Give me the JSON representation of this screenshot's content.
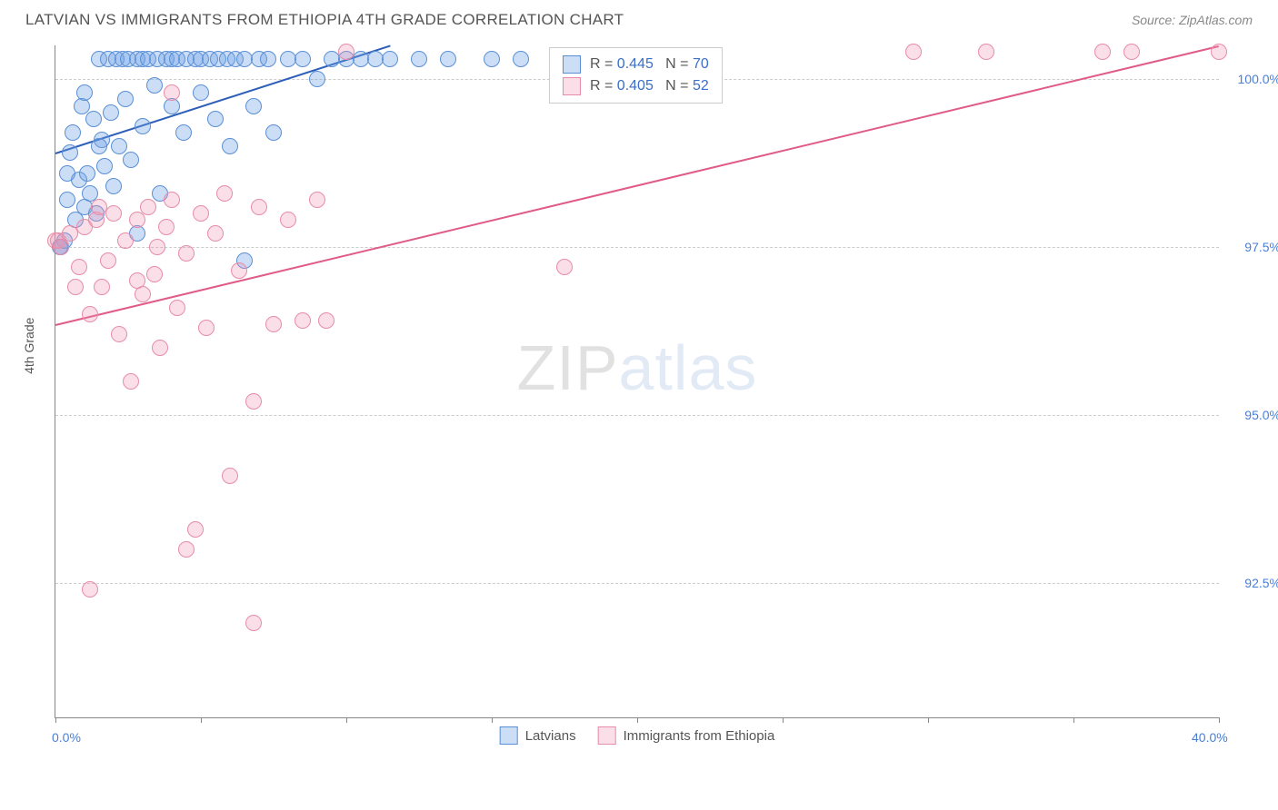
{
  "header": {
    "title": "LATVIAN VS IMMIGRANTS FROM ETHIOPIA 4TH GRADE CORRELATION CHART",
    "source_prefix": "Source: ",
    "source_name": "ZipAtlas.com"
  },
  "chart": {
    "type": "scatter",
    "y_axis_title": "4th Grade",
    "background_color": "#ffffff",
    "grid_color": "#cccccc",
    "axis_color": "#888888",
    "text_color": "#555555",
    "value_color": "#4a7fd6",
    "xlim": [
      0,
      40
    ],
    "ylim": [
      90.5,
      100.5
    ],
    "x_ticks": [
      0,
      5,
      10,
      15,
      20,
      25,
      30,
      35,
      40
    ],
    "y_gridlines": [
      92.5,
      95.0,
      97.5,
      100.0
    ],
    "x_labels": [
      {
        "v": 0,
        "t": "0.0%"
      },
      {
        "v": 40,
        "t": "40.0%"
      }
    ],
    "y_labels": [
      {
        "v": 92.5,
        "t": "92.5%"
      },
      {
        "v": 95.0,
        "t": "95.0%"
      },
      {
        "v": 97.5,
        "t": "97.5%"
      },
      {
        "v": 100.0,
        "t": "100.0%"
      }
    ],
    "marker_radius": 9,
    "marker_border_width": 1.5,
    "line_width": 2,
    "watermark": {
      "part1": "ZIP",
      "part2": "atlas"
    }
  },
  "series": [
    {
      "name": "Latvians",
      "fill_color": "rgba(110,160,230,0.35)",
      "stroke_color": "#5a8fd6",
      "line_color": "#2d5fb8",
      "R": "0.445",
      "N": "70",
      "regression": {
        "x1": 0,
        "y1": 98.9,
        "x2": 11.5,
        "y2": 100.5
      },
      "points": [
        [
          0.3,
          97.6
        ],
        [
          0.4,
          98.2
        ],
        [
          0.5,
          98.9
        ],
        [
          0.6,
          99.2
        ],
        [
          0.7,
          97.9
        ],
        [
          0.8,
          98.5
        ],
        [
          0.9,
          99.6
        ],
        [
          1.0,
          98.1
        ],
        [
          1.0,
          99.8
        ],
        [
          1.1,
          98.6
        ],
        [
          1.2,
          98.3
        ],
        [
          1.3,
          99.4
        ],
        [
          1.4,
          98.0
        ],
        [
          1.5,
          100.3
        ],
        [
          1.6,
          99.1
        ],
        [
          1.7,
          98.7
        ],
        [
          1.8,
          100.3
        ],
        [
          1.9,
          99.5
        ],
        [
          2.0,
          98.4
        ],
        [
          2.1,
          100.3
        ],
        [
          2.2,
          99.0
        ],
        [
          2.3,
          100.3
        ],
        [
          2.4,
          99.7
        ],
        [
          2.5,
          100.3
        ],
        [
          2.6,
          98.8
        ],
        [
          2.8,
          100.3
        ],
        [
          3.0,
          99.3
        ],
        [
          3.0,
          100.3
        ],
        [
          3.2,
          100.3
        ],
        [
          3.4,
          99.9
        ],
        [
          3.5,
          100.3
        ],
        [
          3.6,
          98.3
        ],
        [
          3.8,
          100.3
        ],
        [
          4.0,
          99.6
        ],
        [
          4.0,
          100.3
        ],
        [
          4.2,
          100.3
        ],
        [
          4.4,
          99.2
        ],
        [
          4.5,
          100.3
        ],
        [
          4.8,
          100.3
        ],
        [
          5.0,
          99.8
        ],
        [
          5.0,
          100.3
        ],
        [
          5.3,
          100.3
        ],
        [
          5.5,
          99.4
        ],
        [
          5.6,
          100.3
        ],
        [
          5.9,
          100.3
        ],
        [
          6.0,
          99.0
        ],
        [
          6.2,
          100.3
        ],
        [
          6.5,
          100.3
        ],
        [
          6.8,
          99.6
        ],
        [
          7.0,
          100.3
        ],
        [
          7.3,
          100.3
        ],
        [
          7.5,
          99.2
        ],
        [
          8.0,
          100.3
        ],
        [
          8.5,
          100.3
        ],
        [
          9.0,
          100.0
        ],
        [
          9.5,
          100.3
        ],
        [
          10.0,
          100.3
        ],
        [
          10.5,
          100.3
        ],
        [
          11.0,
          100.3
        ],
        [
          11.5,
          100.3
        ],
        [
          12.5,
          100.3
        ],
        [
          13.5,
          100.3
        ],
        [
          15.0,
          100.3
        ],
        [
          16.0,
          100.3
        ],
        [
          2.8,
          97.7
        ],
        [
          6.5,
          97.3
        ],
        [
          0.2,
          97.5
        ],
        [
          0.15,
          97.5
        ],
        [
          0.4,
          98.6
        ],
        [
          1.5,
          99.0
        ]
      ]
    },
    {
      "name": "Immigrants from Ethiopia",
      "fill_color": "rgba(240,150,180,0.30)",
      "stroke_color": "#e88ca8",
      "line_color": "#e05a8a",
      "R": "0.405",
      "N": "52",
      "regression": {
        "x1": 0,
        "y1": 96.35,
        "x2": 40,
        "y2": 100.5
      },
      "points": [
        [
          0.0,
          97.6
        ],
        [
          0.1,
          97.6
        ],
        [
          0.2,
          97.5
        ],
        [
          0.5,
          97.7
        ],
        [
          0.8,
          97.2
        ],
        [
          1.0,
          97.8
        ],
        [
          1.2,
          96.5
        ],
        [
          1.4,
          97.9
        ],
        [
          1.6,
          96.9
        ],
        [
          1.8,
          97.3
        ],
        [
          2.0,
          98.0
        ],
        [
          2.2,
          96.2
        ],
        [
          2.4,
          97.6
        ],
        [
          2.6,
          95.5
        ],
        [
          2.8,
          97.9
        ],
        [
          3.0,
          96.8
        ],
        [
          3.2,
          98.1
        ],
        [
          3.4,
          97.1
        ],
        [
          3.6,
          96.0
        ],
        [
          3.8,
          97.8
        ],
        [
          4.0,
          98.2
        ],
        [
          4.2,
          96.6
        ],
        [
          4.5,
          97.4
        ],
        [
          4.8,
          93.3
        ],
        [
          5.0,
          98.0
        ],
        [
          5.2,
          96.3
        ],
        [
          5.5,
          97.7
        ],
        [
          5.8,
          98.3
        ],
        [
          6.0,
          94.1
        ],
        [
          6.3,
          97.15
        ],
        [
          6.8,
          95.2
        ],
        [
          7.0,
          98.1
        ],
        [
          7.5,
          96.35
        ],
        [
          8.0,
          97.9
        ],
        [
          8.5,
          96.4
        ],
        [
          9.0,
          98.2
        ],
        [
          9.3,
          96.4
        ],
        [
          10.0,
          100.4
        ],
        [
          1.2,
          92.4
        ],
        [
          4.5,
          93.0
        ],
        [
          6.8,
          91.9
        ],
        [
          17.5,
          97.2
        ],
        [
          4.0,
          99.8
        ],
        [
          1.5,
          98.1
        ],
        [
          2.8,
          97.0
        ],
        [
          3.5,
          97.5
        ],
        [
          0.7,
          96.9
        ],
        [
          29.5,
          100.4
        ],
        [
          32.0,
          100.4
        ],
        [
          36.0,
          100.4
        ],
        [
          37.0,
          100.4
        ],
        [
          40.0,
          100.4
        ]
      ]
    }
  ],
  "legend_box": {
    "prefix_R": "R =",
    "prefix_N": "N ="
  },
  "bottom_legend": {
    "label1": "Latvians",
    "label2": "Immigrants from Ethiopia"
  }
}
